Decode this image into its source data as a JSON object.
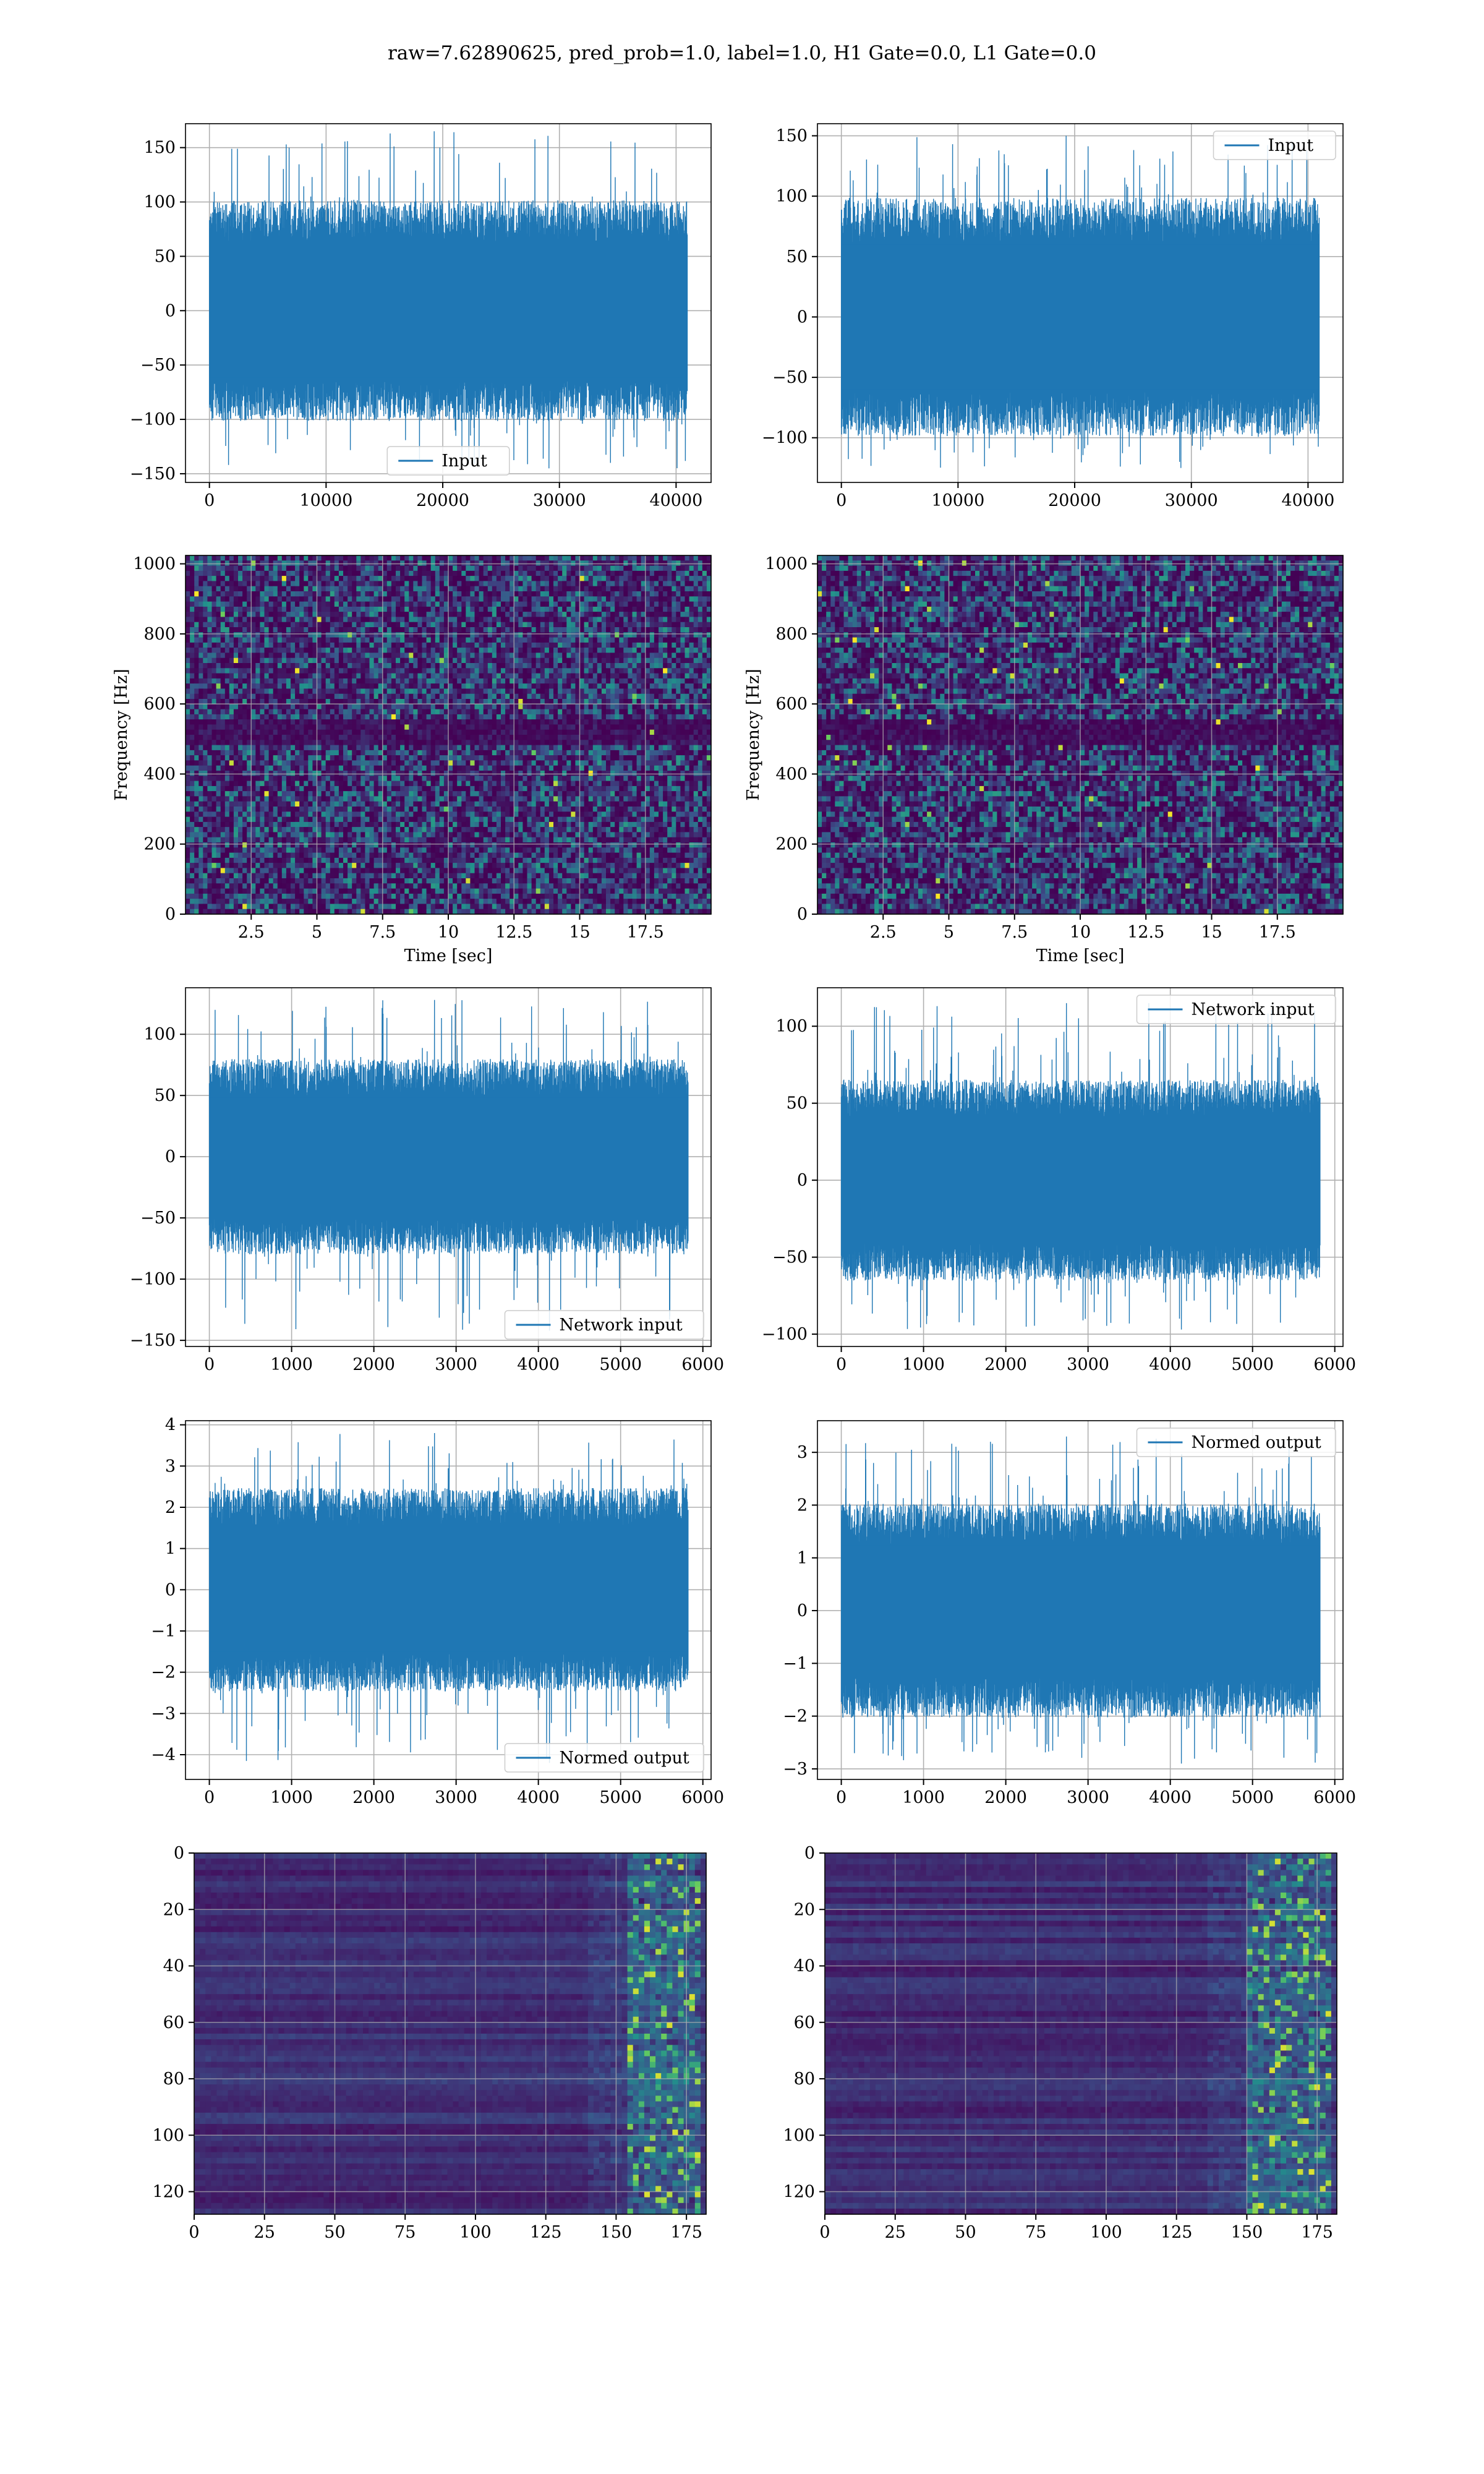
{
  "figure": {
    "suptitle": "raw=7.62890625, pred_prob=1.0, label=1.0, H1 Gate=0.0, L1 Gate=0.0"
  },
  "colors": {
    "series": "#1f77b4",
    "grid": "#b0b0b0",
    "viridis_low": "#440154",
    "viridis_mid": "#21918c",
    "viridis_high": "#fde725"
  },
  "chart_data": [
    {
      "id": "r0c0",
      "type": "line",
      "row": 0,
      "col": 0,
      "title": "",
      "xlabel": "",
      "ylabel": "",
      "xlim": [
        -2050,
        43000
      ],
      "ylim": [
        -158,
        172
      ],
      "xticks": [
        0,
        10000,
        20000,
        30000,
        40000
      ],
      "yticks": [
        -150,
        -100,
        -50,
        0,
        50,
        100,
        150
      ],
      "series": [
        {
          "name": "Input",
          "x_range": [
            0,
            40960
          ],
          "envelope_peak": 165,
          "envelope_trough": -145,
          "typical_amplitude": 70
        }
      ],
      "legend": "lower center",
      "grid": true
    },
    {
      "id": "r0c1",
      "type": "line",
      "row": 0,
      "col": 1,
      "title": "",
      "xlabel": "",
      "ylabel": "",
      "xlim": [
        -2050,
        43000
      ],
      "ylim": [
        -137,
        160
      ],
      "xticks": [
        0,
        10000,
        20000,
        30000,
        40000
      ],
      "yticks": [
        -100,
        -50,
        0,
        50,
        100,
        150
      ],
      "series": [
        {
          "name": "Input",
          "x_range": [
            0,
            40960
          ],
          "envelope_peak": 150,
          "envelope_trough": -125,
          "typical_amplitude": 68
        }
      ],
      "legend": "upper right",
      "grid": true
    },
    {
      "id": "r1c0",
      "type": "heatmap",
      "row": 1,
      "col": 0,
      "title": "",
      "xlabel": "Time [sec]",
      "ylabel": "Frequency [Hz]",
      "xlim": [
        0,
        20
      ],
      "ylim": [
        0,
        1024
      ],
      "xticks": [
        2.5,
        5.0,
        7.5,
        10.0,
        12.5,
        15.0,
        17.5
      ],
      "yticks": [
        0,
        200,
        400,
        600,
        800,
        1000
      ],
      "colormap": "viridis",
      "grid": true
    },
    {
      "id": "r1c1",
      "type": "heatmap",
      "row": 1,
      "col": 1,
      "title": "",
      "xlabel": "Time [sec]",
      "ylabel": "Frequency [Hz]",
      "xlim": [
        0,
        20
      ],
      "ylim": [
        0,
        1024
      ],
      "xticks": [
        2.5,
        5.0,
        7.5,
        10.0,
        12.5,
        15.0,
        17.5
      ],
      "yticks": [
        0,
        200,
        400,
        600,
        800,
        1000
      ],
      "colormap": "viridis",
      "grid": true
    },
    {
      "id": "r2c0",
      "type": "line",
      "row": 2,
      "col": 0,
      "title": "",
      "xlabel": "",
      "ylabel": "",
      "xlim": [
        -290,
        6100
      ],
      "ylim": [
        -155,
        138
      ],
      "xticks": [
        0,
        1000,
        2000,
        3000,
        4000,
        5000,
        6000
      ],
      "yticks": [
        -150,
        -100,
        -50,
        0,
        50,
        100
      ],
      "series": [
        {
          "name": "Network input",
          "x_range": [
            0,
            5820
          ],
          "envelope_peak": 128,
          "envelope_trough": -142,
          "typical_amplitude": 55
        }
      ],
      "legend": "lower right",
      "grid": true
    },
    {
      "id": "r2c1",
      "type": "line",
      "row": 2,
      "col": 1,
      "title": "",
      "xlabel": "",
      "ylabel": "",
      "xlim": [
        -290,
        6100
      ],
      "ylim": [
        -108,
        125
      ],
      "xticks": [
        0,
        1000,
        2000,
        3000,
        4000,
        5000,
        6000
      ],
      "yticks": [
        -100,
        -50,
        0,
        50,
        100
      ],
      "series": [
        {
          "name": "Network input",
          "x_range": [
            0,
            5820
          ],
          "envelope_peak": 115,
          "envelope_trough": -97,
          "typical_amplitude": 45
        }
      ],
      "legend": "upper right",
      "grid": true
    },
    {
      "id": "r3c0",
      "type": "line",
      "row": 3,
      "col": 0,
      "title": "",
      "xlabel": "",
      "ylabel": "",
      "xlim": [
        -290,
        6100
      ],
      "ylim": [
        -4.6,
        4.1
      ],
      "xticks": [
        0,
        1000,
        2000,
        3000,
        4000,
        5000,
        6000
      ],
      "yticks": [
        -4,
        -3,
        -2,
        -1,
        0,
        1,
        2,
        3,
        4
      ],
      "series": [
        {
          "name": "Normed output",
          "x_range": [
            0,
            5820
          ],
          "envelope_peak": 3.8,
          "envelope_trough": -4.2,
          "typical_amplitude": 1.7
        }
      ],
      "legend": "lower right",
      "grid": true
    },
    {
      "id": "r3c1",
      "type": "line",
      "row": 3,
      "col": 1,
      "title": "",
      "xlabel": "",
      "ylabel": "",
      "xlim": [
        -290,
        6100
      ],
      "ylim": [
        -3.2,
        3.6
      ],
      "xticks": [
        0,
        1000,
        2000,
        3000,
        4000,
        5000,
        6000
      ],
      "yticks": [
        -3,
        -2,
        -1,
        0,
        1,
        2,
        3
      ],
      "series": [
        {
          "name": "Normed output",
          "x_range": [
            0,
            5820
          ],
          "envelope_peak": 3.3,
          "envelope_trough": -2.9,
          "typical_amplitude": 1.4
        }
      ],
      "legend": "upper right",
      "grid": true
    },
    {
      "id": "r4c0",
      "type": "heatmap",
      "row": 4,
      "col": 0,
      "title": "",
      "xlabel": "",
      "ylabel": "",
      "xlim": [
        0,
        182
      ],
      "ylim": [
        128,
        0
      ],
      "xticks": [
        0,
        25,
        50,
        75,
        100,
        125,
        150,
        175
      ],
      "yticks": [
        0,
        20,
        40,
        60,
        80,
        100,
        120
      ],
      "colormap": "viridis",
      "bright_columns": [
        155,
        180
      ],
      "grid": true
    },
    {
      "id": "r4c1",
      "type": "heatmap",
      "row": 4,
      "col": 1,
      "title": "",
      "xlabel": "",
      "ylabel": "",
      "xlim": [
        0,
        182
      ],
      "ylim": [
        128,
        0
      ],
      "xticks": [
        0,
        25,
        50,
        75,
        100,
        125,
        150,
        175
      ],
      "yticks": [
        0,
        20,
        40,
        60,
        80,
        100,
        120
      ],
      "colormap": "viridis",
      "bright_columns": [
        150,
        180
      ],
      "grid": true
    }
  ]
}
